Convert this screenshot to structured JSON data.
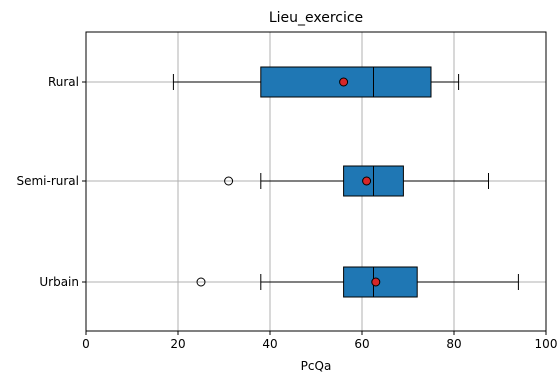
{
  "chart_data": {
    "type": "boxplot",
    "orientation": "horizontal",
    "title": "Lieu_exercice",
    "xlabel": "PcQa",
    "ylabel": "",
    "xlim": [
      0,
      100
    ],
    "x_ticks": [
      "0",
      "20",
      "40",
      "60",
      "80",
      "100"
    ],
    "grid": true,
    "categories": [
      "Rural",
      "Semi-rural",
      "Urbain"
    ],
    "boxes": [
      {
        "category": "Rural",
        "whisker_low": 19,
        "q1": 38,
        "median": 62.5,
        "q3": 75,
        "whisker_high": 81,
        "mean": 56,
        "outliers": []
      },
      {
        "category": "Semi-rural",
        "whisker_low": 38,
        "q1": 56,
        "median": 62.5,
        "q3": 69,
        "whisker_high": 87.5,
        "mean": 61,
        "outliers": [
          31
        ]
      },
      {
        "category": "Urbain",
        "whisker_low": 38,
        "q1": 56,
        "median": 62.5,
        "q3": 72,
        "whisker_high": 94,
        "mean": 63,
        "outliers": [
          25
        ]
      }
    ],
    "colors": {
      "box": "#1f77b4",
      "mean": "#d62728",
      "grid": "#b0b0b0",
      "line": "#000000"
    }
  }
}
